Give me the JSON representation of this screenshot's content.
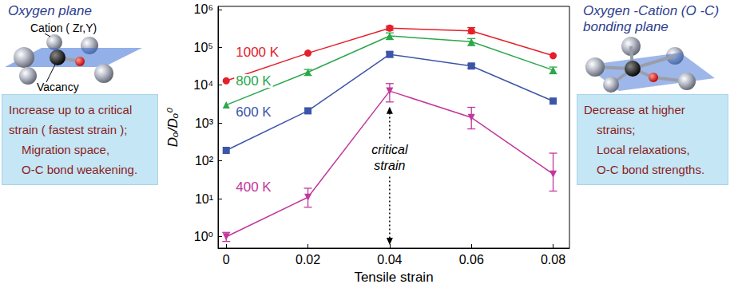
{
  "chart_data": {
    "type": "line",
    "xlabel": "Tensile strain",
    "ylabel": "Dₒ/Dₒ⁰",
    "log": "y",
    "grid": false,
    "xlim": [
      -0.002,
      0.084
    ],
    "xticks": [
      0,
      0.02,
      0.04,
      0.06,
      0.08
    ],
    "ylim": [
      0.5,
      1200000
    ],
    "yticks": [
      {
        "value": 1,
        "label": "10⁰"
      },
      {
        "value": 10,
        "label": "10¹"
      },
      {
        "value": 100,
        "label": "10²"
      },
      {
        "value": 1000,
        "label": "10³"
      },
      {
        "value": 10000,
        "label": "10⁴"
      },
      {
        "value": 100000,
        "label": "10⁵"
      },
      {
        "value": 1000000,
        "label": "10⁶"
      }
    ],
    "x": [
      0,
      0.02,
      0.04,
      0.06,
      0.08
    ],
    "series": [
      {
        "name": "1000 K",
        "color": "#e5202a",
        "marker": "circle",
        "values": [
          13000,
          70000,
          320000,
          270000,
          60000
        ],
        "error_low": [
          null,
          null,
          280000,
          230000,
          null
        ],
        "error_high": [
          null,
          null,
          360000,
          330000,
          null
        ]
      },
      {
        "name": "800 K",
        "color": "#2aa84a",
        "marker": "triangle-up",
        "values": [
          3000,
          22000,
          200000,
          140000,
          25000
        ],
        "error_low": [
          null,
          18000,
          160000,
          110000,
          20000
        ],
        "error_high": [
          null,
          26000,
          240000,
          170000,
          30000
        ]
      },
      {
        "name": "600 K",
        "color": "#3d55a8",
        "marker": "square",
        "values": [
          190,
          2100,
          65000,
          32000,
          3800
        ],
        "error_low": [
          null,
          null,
          55000,
          28000,
          null
        ],
        "error_high": [
          null,
          null,
          75000,
          36000,
          null
        ]
      },
      {
        "name": "400 K",
        "color": "#c2379c",
        "marker": "triangle-down",
        "values": [
          1,
          11,
          7000,
          1400,
          45
        ],
        "error_low": [
          0.75,
          6,
          3600,
          700,
          16
        ],
        "error_high": [
          1.3,
          19,
          11000,
          2600,
          160
        ]
      }
    ],
    "annotations": [
      {
        "text": "critical strain",
        "x": 0.04
      }
    ]
  },
  "left_panel": {
    "title": "Oxygen plane",
    "labels": [
      "Cation ( Zr,Y)",
      "Vacancy"
    ],
    "text": [
      "Increase up to a critical",
      "strain ( fastest strain );",
      "Migration space,",
      "O-C bond weakening."
    ]
  },
  "right_panel": {
    "title": "Oxygen -Cation (O -C) bonding plane",
    "text": [
      "Decrease at higher",
      "strains;",
      "Local relaxations,",
      "O-C bond strengths."
    ]
  }
}
